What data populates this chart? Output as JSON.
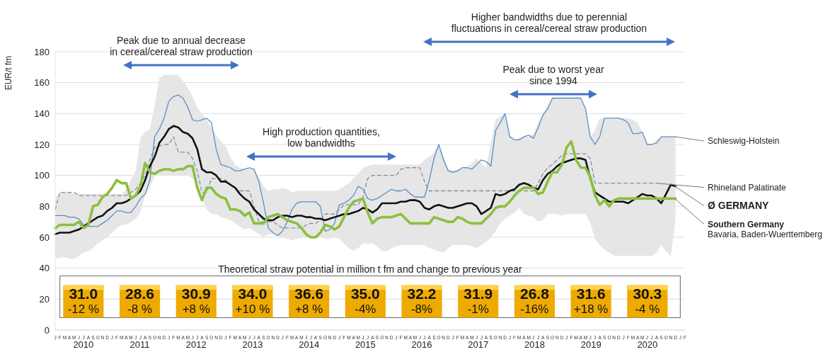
{
  "chart_data": {
    "type": "line",
    "ylabel": "EUR/t fm",
    "marker": "none",
    "grid": "y",
    "ylim": [
      0,
      180
    ],
    "yticks": [
      0,
      20,
      40,
      60,
      80,
      100,
      120,
      140,
      160,
      180
    ],
    "categories": [
      "J",
      "F",
      "M",
      "A",
      "M",
      "J",
      "J",
      "A",
      "S",
      "O",
      "N",
      "D",
      "J",
      "F",
      "M",
      "A",
      "M",
      "J",
      "J",
      "A",
      "S",
      "O",
      "N",
      "D",
      "J",
      "F",
      "M",
      "A",
      "M",
      "J",
      "J",
      "A",
      "S",
      "O",
      "N",
      "D",
      "J",
      "F",
      "M",
      "A",
      "M",
      "J",
      "J",
      "A",
      "S",
      "O",
      "N",
      "D",
      "J",
      "F",
      "M",
      "A",
      "M",
      "J",
      "J",
      "A",
      "S",
      "O",
      "N",
      "D",
      "J",
      "F",
      "M",
      "A",
      "M",
      "J",
      "J",
      "A",
      "S",
      "O",
      "N",
      "D",
      "J",
      "F",
      "M",
      "A",
      "M",
      "J",
      "J",
      "A",
      "S",
      "O",
      "N",
      "D",
      "J",
      "F",
      "M",
      "A",
      "M",
      "J",
      "J",
      "A",
      "S",
      "O",
      "N",
      "D",
      "J",
      "F",
      "M",
      "A",
      "M",
      "J",
      "J",
      "A",
      "S",
      "O",
      "N",
      "D",
      "J",
      "F",
      "M",
      "A",
      "M",
      "J",
      "J",
      "A",
      "S",
      "O",
      "N",
      "D",
      "J",
      "F",
      "M",
      "A",
      "M",
      "J",
      "J",
      "A",
      "S",
      "O",
      "N",
      "D",
      "J",
      "F"
    ],
    "series": [
      {
        "name": "Schleswig-Holstein",
        "color": "#5b8fc7",
        "values": [
          74,
          74,
          74,
          73,
          73,
          72,
          68,
          67,
          67,
          67,
          69,
          71,
          74,
          77,
          77,
          76,
          76,
          80,
          85,
          88,
          97,
          125,
          130,
          137,
          148,
          151,
          152,
          150,
          144,
          136,
          135,
          136,
          137,
          134,
          117,
          107,
          106,
          105,
          103,
          103,
          104,
          105,
          104,
          96,
          82,
          66,
          63,
          61,
          64,
          70,
          78,
          82,
          83,
          83,
          83,
          83,
          80,
          64,
          65,
          69,
          81,
          82,
          84,
          87,
          93,
          91,
          85,
          84,
          85,
          87,
          89,
          91,
          90,
          90,
          91,
          88,
          86,
          86,
          86,
          97,
          111,
          120,
          110,
          103,
          102,
          103,
          105,
          105,
          104,
          107,
          110,
          109,
          106,
          129,
          134,
          140,
          125,
          123,
          123,
          125,
          126,
          124,
          131,
          139,
          143,
          150,
          150,
          150,
          150,
          150,
          150,
          150,
          143,
          125,
          120,
          125,
          137,
          137,
          137,
          137,
          136,
          134,
          127,
          127,
          128,
          120,
          120,
          121,
          125,
          125,
          125,
          125,
          null,
          null
        ]
      },
      {
        "name": "Rhineland Palatinate",
        "color": "#8a8aa0",
        "line_style": "dashed",
        "values": [
          78,
          89,
          89,
          89,
          89,
          87,
          87,
          87,
          87,
          87,
          87,
          87,
          87,
          87,
          87,
          87,
          89,
          91,
          95,
          100,
          110,
          118,
          119,
          120,
          120,
          125,
          115,
          115,
          115,
          111,
          103,
          89,
          89,
          98,
          98,
          98,
          97,
          94,
          92,
          90,
          90,
          90,
          80,
          70,
          70,
          70,
          70,
          68,
          66,
          66,
          66,
          66,
          66,
          68,
          69,
          69,
          71,
          75,
          75,
          75,
          78,
          81,
          81,
          81,
          81,
          86,
          98,
          100,
          100,
          100,
          100,
          100,
          100,
          104,
          105,
          105,
          105,
          105,
          96,
          90,
          90,
          90,
          90,
          90,
          90,
          90,
          90,
          90,
          90,
          90,
          90,
          90,
          90,
          90,
          90,
          90,
          90,
          90,
          90,
          90,
          90,
          90,
          95,
          101,
          105,
          107,
          110,
          113,
          114,
          114,
          114,
          114,
          114,
          111,
          95,
          95,
          95,
          95,
          95,
          95,
          95,
          95,
          95,
          95,
          95,
          95,
          95,
          95,
          null,
          null,
          null,
          null,
          null,
          null
        ]
      },
      {
        "name": "Ø GERMANY",
        "color": "#111111",
        "values": [
          62,
          63,
          63,
          63,
          64,
          65,
          67,
          69,
          71,
          73,
          74,
          77,
          79,
          82,
          82,
          83,
          85,
          87,
          90,
          97,
          106,
          112,
          121,
          125,
          130,
          132,
          131,
          128,
          127,
          124,
          117,
          104,
          102,
          102,
          100,
          96,
          96,
          94,
          92,
          88,
          85,
          83,
          78,
          75,
          72,
          71,
          71,
          73,
          74,
          74,
          73,
          74,
          74,
          73,
          73,
          72,
          72,
          71,
          72,
          73,
          74,
          75,
          75,
          76,
          77,
          79,
          78,
          76,
          78,
          82,
          82,
          82,
          82,
          83,
          83,
          84,
          84,
          83,
          79,
          78,
          80,
          81,
          80,
          79,
          79,
          80,
          81,
          82,
          82,
          80,
          75,
          77,
          79,
          88,
          87,
          88,
          90,
          91,
          94,
          95,
          94,
          92,
          91,
          97,
          101,
          103,
          106,
          108,
          109,
          110,
          111,
          111,
          110,
          98,
          89,
          87,
          85,
          83,
          83,
          83,
          83,
          82,
          84,
          86,
          88,
          87,
          87,
          85,
          82,
          88,
          94,
          93,
          null,
          null
        ],
        "lower": [
          46,
          47,
          47,
          46,
          46,
          48,
          50,
          51,
          53,
          56,
          58,
          60,
          63,
          66,
          68,
          68,
          70,
          72,
          76,
          87,
          92,
          100,
          100,
          100,
          100,
          100,
          100,
          100,
          100,
          98,
          94,
          85,
          78,
          75,
          75,
          73,
          72,
          71,
          69,
          67,
          65,
          66,
          64,
          62,
          60,
          62,
          62,
          61,
          60,
          59,
          58,
          59,
          60,
          60,
          60,
          60,
          60,
          59,
          59,
          60,
          59,
          56,
          53,
          51,
          53,
          56,
          56,
          56,
          54,
          51,
          51,
          53,
          54,
          55,
          55,
          55,
          55,
          55,
          55,
          53,
          52,
          51,
          50,
          53,
          55,
          55,
          55,
          55,
          54,
          53,
          55,
          57,
          60,
          64,
          69,
          72,
          74,
          76,
          79,
          75,
          74,
          73,
          70,
          71,
          75,
          75,
          75,
          74,
          75,
          75,
          75,
          75,
          75,
          69,
          59,
          55,
          52,
          50,
          48,
          48,
          48,
          48,
          48,
          48,
          48,
          48,
          48,
          50,
          55,
          51,
          48,
          71,
          null,
          null
        ],
        "upper": [
          85,
          89,
          89,
          89,
          88,
          88,
          88,
          88,
          88,
          88,
          88,
          88,
          88,
          88,
          88,
          91,
          97,
          103,
          124,
          128,
          130,
          145,
          163,
          165,
          165,
          165,
          165,
          161,
          157,
          151,
          144,
          140,
          136,
          131,
          126,
          122,
          119,
          112,
          107,
          105,
          104,
          105,
          104,
          99,
          93,
          90,
          91,
          91,
          92,
          91,
          89,
          90,
          90,
          90,
          90,
          90,
          90,
          90,
          90,
          90,
          91,
          93,
          95,
          98,
          101,
          105,
          106,
          107,
          107,
          107,
          107,
          107,
          107,
          107,
          107,
          107,
          107,
          107,
          110,
          112,
          115,
          120,
          113,
          104,
          103,
          104,
          104,
          106,
          108,
          111,
          108,
          105,
          121,
          136,
          138,
          140,
          126,
          123,
          124,
          125,
          125,
          127,
          134,
          140,
          145,
          150,
          150,
          150,
          150,
          150,
          150,
          150,
          143,
          125,
          129,
          137,
          137,
          137,
          137,
          137,
          137,
          137,
          136,
          134,
          128,
          121,
          120,
          123,
          125,
          125,
          125,
          125,
          null,
          null
        ]
      },
      {
        "name": "Southern Germany\nBavaria, Baden-Wuerttemberg",
        "color": "#8cbf3f",
        "values": [
          66,
          68,
          68,
          68,
          68,
          70,
          66,
          68,
          80,
          81,
          86,
          88,
          92,
          97,
          95,
          95,
          85,
          87,
          93,
          108,
          102,
          101,
          103,
          104,
          104,
          103,
          104,
          104,
          106,
          106,
          92,
          84,
          92,
          92,
          88,
          86,
          85,
          78,
          78,
          77,
          74,
          76,
          69,
          69,
          69,
          73,
          74,
          75,
          73,
          71,
          70,
          69,
          66,
          62,
          60,
          60,
          63,
          68,
          67,
          65,
          67,
          73,
          79,
          83,
          84,
          85,
          76,
          69,
          72,
          73,
          73,
          73,
          74,
          75,
          72,
          69,
          69,
          69,
          69,
          69,
          73,
          72,
          71,
          70,
          70,
          73,
          72,
          70,
          69,
          69,
          69,
          72,
          75,
          79,
          80,
          80,
          83,
          87,
          90,
          92,
          92,
          92,
          88,
          89,
          96,
          102,
          102,
          107,
          118,
          122,
          110,
          105,
          105,
          99,
          87,
          81,
          84,
          80,
          84,
          85,
          85,
          85,
          85,
          85,
          85,
          85,
          85,
          85,
          85,
          85,
          85,
          85,
          null,
          null
        ]
      }
    ],
    "annotations": [
      "Peak due to annual decrease\nin cereal/cereal straw production",
      "High production quantities,\nlow bandwidths",
      "Peak due to worst year\nsince 1994",
      "Higher bandwidths due to perennial\nfluctuations in cereal/cereal straw production",
      "Theoretical straw potential in million t fm and change to previous year",
      "31.0",
      "-12 %",
      "28.6",
      "-8 %",
      "30.9",
      "+8 %",
      "34.0",
      "+10 %",
      "36.6",
      "+8 %",
      "35.0",
      "-4%",
      "32.2",
      "-8%",
      "31.9",
      "-1%",
      "26.8",
      "-16%",
      "31.6",
      "+18 %",
      "30.3",
      "-4 %",
      "2010",
      "2011",
      "2012",
      "2013",
      "2014",
      "2015",
      "2016",
      "2017",
      "2018",
      "2019",
      "2020"
    ]
  }
}
